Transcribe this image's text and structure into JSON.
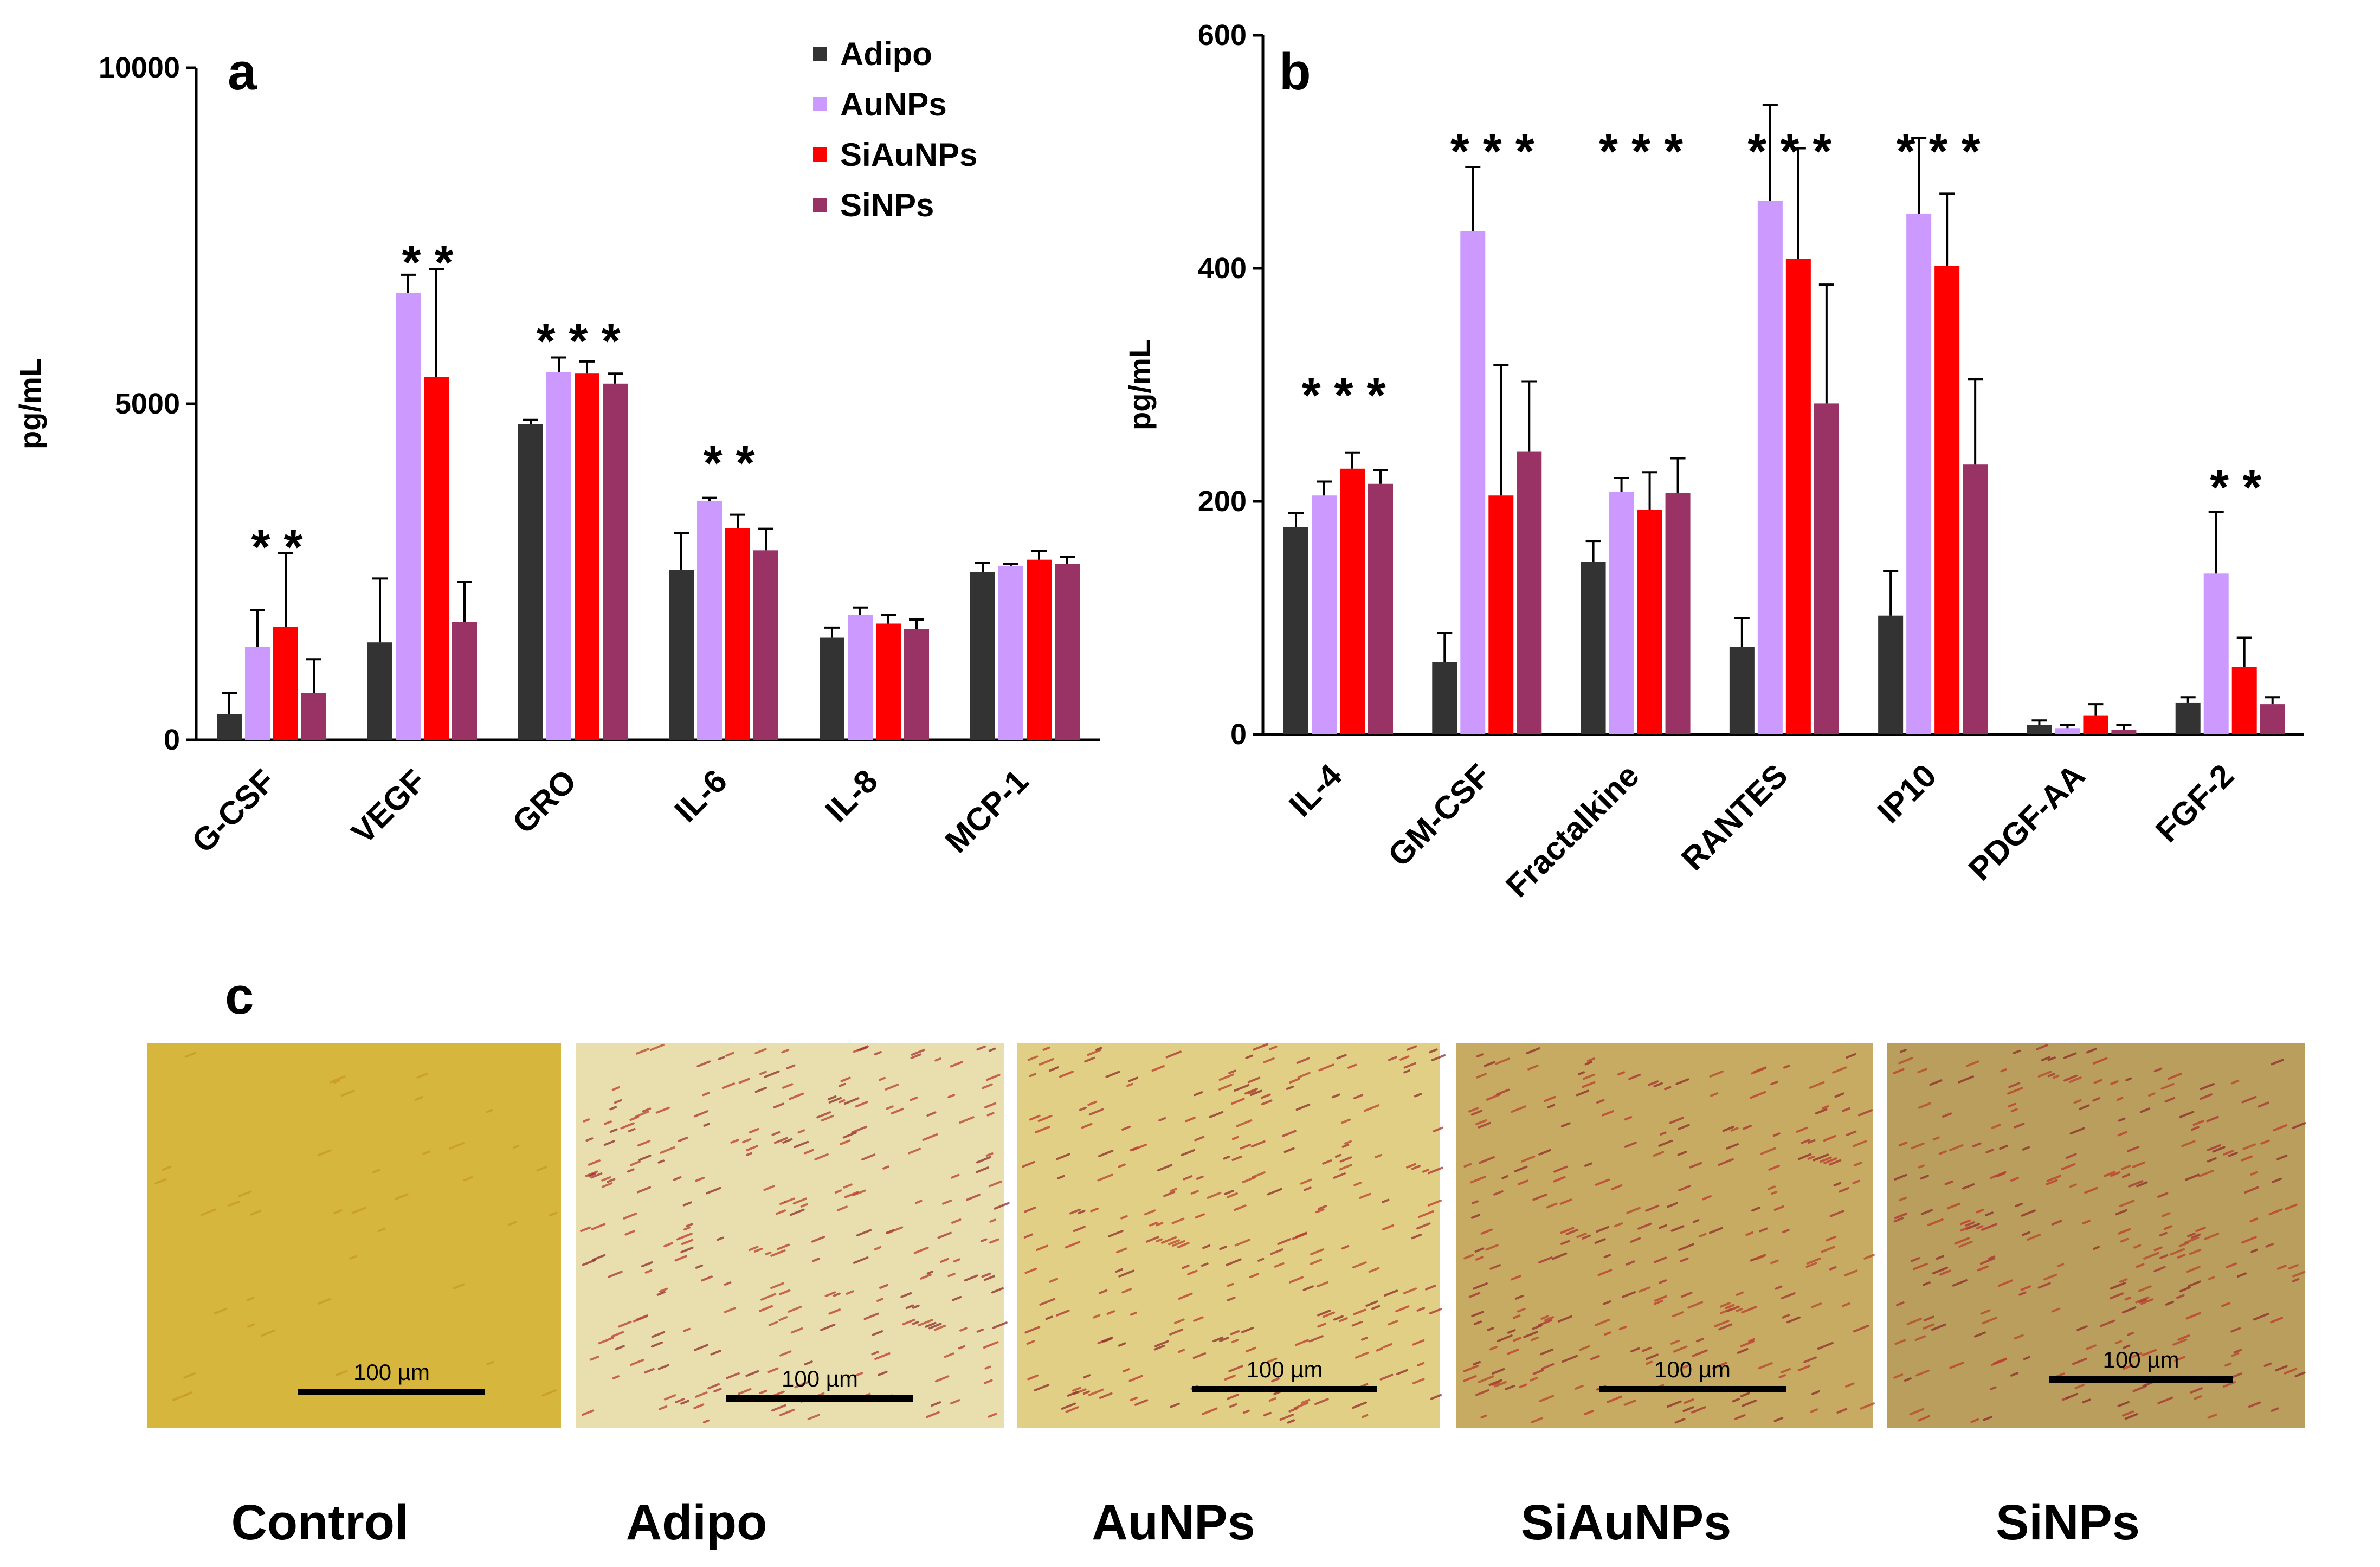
{
  "colors": {
    "Adipo": "#333333",
    "AuNPs": "#cc99ff",
    "SiAuNPs": "#ff0000",
    "SiNPs": "#993366"
  },
  "legend": [
    "Adipo",
    "AuNPs",
    "SiAuNPs",
    "SiNPs"
  ],
  "chart_data": [
    {
      "panel": "a",
      "type": "bar",
      "ylabel": "pg/mL",
      "ylim": [
        0,
        10000
      ],
      "yticks": [
        "0",
        "5000",
        "10000"
      ],
      "categories": [
        "G-CSF",
        "VEGF",
        "GRO",
        "IL-6",
        "IL-8",
        "MCP-1"
      ],
      "series": [
        {
          "name": "Adipo",
          "values": [
            380,
            1450,
            4700,
            2530,
            1520,
            2500
          ],
          "errors": [
            320,
            950,
            60,
            550,
            150,
            130
          ]
        },
        {
          "name": "AuNPs",
          "values": [
            1380,
            6650,
            5470,
            3550,
            1860,
            2590
          ],
          "errors": [
            550,
            270,
            220,
            50,
            110,
            30
          ]
        },
        {
          "name": "SiAuNPs",
          "values": [
            1680,
            5400,
            5450,
            3150,
            1730,
            2680
          ],
          "errors": [
            1100,
            1600,
            180,
            200,
            130,
            130
          ]
        },
        {
          "name": "SiNPs",
          "values": [
            700,
            1750,
            5300,
            2820,
            1650,
            2620
          ],
          "errors": [
            500,
            600,
            150,
            320,
            140,
            100
          ]
        }
      ],
      "annotations": [
        "* *",
        "* *",
        "* * *",
        "* *",
        "",
        ""
      ]
    },
    {
      "panel": "b",
      "type": "bar",
      "ylabel": "pg/mL",
      "ylim": [
        0,
        600
      ],
      "yticks": [
        "0",
        "200",
        "400",
        "600"
      ],
      "categories": [
        "IL-4",
        "GM-CSF",
        "Fractalkine",
        "RANTES",
        "IP10",
        "PDGF-AA",
        "FGF-2"
      ],
      "series": [
        {
          "name": "Adipo",
          "values": [
            178,
            62,
            148,
            75,
            102,
            8,
            27
          ],
          "errors": [
            12,
            25,
            18,
            25,
            38,
            4,
            5
          ]
        },
        {
          "name": "AuNPs",
          "values": [
            205,
            432,
            208,
            458,
            447,
            5,
            138
          ],
          "errors": [
            12,
            55,
            12,
            82,
            65,
            3,
            53
          ]
        },
        {
          "name": "SiAuNPs",
          "values": [
            228,
            205,
            193,
            408,
            402,
            16,
            58
          ],
          "errors": [
            14,
            112,
            32,
            95,
            62,
            10,
            25
          ]
        },
        {
          "name": "SiNPs",
          "values": [
            215,
            243,
            207,
            284,
            232,
            4,
            26
          ],
          "errors": [
            12,
            60,
            30,
            102,
            73,
            4,
            6
          ]
        }
      ],
      "annotations": [
        "* * *",
        "* * *",
        "* * *",
        "* * *",
        "* * *",
        "",
        "* *"
      ]
    }
  ],
  "panel_c": {
    "label": "c",
    "scale_bar": "100 µm",
    "images": [
      {
        "name": "Control",
        "tint": "#d7b63d"
      },
      {
        "name": "Adipo",
        "tint": "#e9dfae"
      },
      {
        "name": "AuNPs",
        "tint": "#e2cf86"
      },
      {
        "name": "SiAuNPs",
        "tint": "#c7ab63"
      },
      {
        "name": "SiNPs",
        "tint": "#b99e5d"
      }
    ]
  }
}
